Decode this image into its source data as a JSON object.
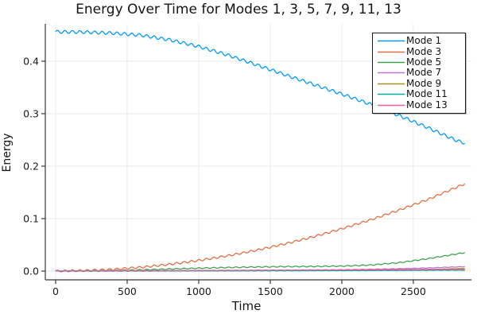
{
  "chart_data": {
    "type": "line",
    "title": "Energy Over Time for Modes 1, 3, 5, 7, 9, 11, 13",
    "xlabel": "Time",
    "ylabel": "Energy",
    "xlim": [
      -72,
      2906
    ],
    "ylim": [
      -0.0167,
      0.4712
    ],
    "xticks": [
      0,
      500,
      1000,
      1500,
      2000,
      2500
    ],
    "xtick_labels": [
      "0",
      "500",
      "1000",
      "1500",
      "2000",
      "2500"
    ],
    "yticks": [
      0.0,
      0.1,
      0.2,
      0.3,
      0.4
    ],
    "ytick_labels": [
      "0.0",
      "0.1",
      "0.2",
      "0.3",
      "0.4"
    ],
    "grid": true,
    "legend_position": "top-right",
    "grid_color": "#e9e9e9",
    "axis_color": "#383838",
    "tick_label_color": "#191919",
    "oscillation_period": 52,
    "series": [
      {
        "name": "Mode 1",
        "color": "#009AFA",
        "ripple_amp": 0.0028,
        "points": [
          [
            0,
            0.456
          ],
          [
            200,
            0.4555
          ],
          [
            400,
            0.4535
          ],
          [
            600,
            0.4495
          ],
          [
            800,
            0.4405
          ],
          [
            1000,
            0.428
          ],
          [
            1200,
            0.412
          ],
          [
            1400,
            0.3935
          ],
          [
            1600,
            0.3745
          ],
          [
            1800,
            0.356
          ],
          [
            2000,
            0.3375
          ],
          [
            2200,
            0.318
          ],
          [
            2400,
            0.2965
          ],
          [
            2600,
            0.2735
          ],
          [
            2800,
            0.249
          ],
          [
            2860,
            0.244
          ]
        ]
      },
      {
        "name": "Mode 3",
        "color": "#E36F47",
        "ripple_amp": 0.0018,
        "points": [
          [
            0,
            0.0
          ],
          [
            200,
            0.001
          ],
          [
            400,
            0.0032
          ],
          [
            600,
            0.0073
          ],
          [
            800,
            0.0129
          ],
          [
            1000,
            0.0202
          ],
          [
            1200,
            0.029
          ],
          [
            1400,
            0.0395
          ],
          [
            1600,
            0.0516
          ],
          [
            1800,
            0.0653
          ],
          [
            2000,
            0.0807
          ],
          [
            2200,
            0.0976
          ],
          [
            2400,
            0.1162
          ],
          [
            2600,
            0.1363
          ],
          [
            2800,
            0.1595
          ],
          [
            2860,
            0.1665
          ]
        ]
      },
      {
        "name": "Mode 5",
        "color": "#3DA44E",
        "ripple_amp": 0.0009,
        "points": [
          [
            0,
            0.0
          ],
          [
            200,
            0.0003
          ],
          [
            400,
            0.001
          ],
          [
            600,
            0.0022
          ],
          [
            800,
            0.004
          ],
          [
            1000,
            0.0055
          ],
          [
            1200,
            0.0068
          ],
          [
            1400,
            0.0078
          ],
          [
            1600,
            0.0085
          ],
          [
            1800,
            0.0088
          ],
          [
            2000,
            0.0095
          ],
          [
            2200,
            0.0115
          ],
          [
            2400,
            0.016
          ],
          [
            2600,
            0.0235
          ],
          [
            2800,
            0.0325
          ],
          [
            2860,
            0.0355
          ]
        ]
      },
      {
        "name": "Mode 7",
        "color": "#C371D2",
        "ripple_amp": 0.0004,
        "points": [
          [
            0,
            0.0
          ],
          [
            400,
            0.0002
          ],
          [
            800,
            0.0005
          ],
          [
            1200,
            0.001
          ],
          [
            1600,
            0.0016
          ],
          [
            2000,
            0.0025
          ],
          [
            2400,
            0.0045
          ],
          [
            2600,
            0.006
          ],
          [
            2860,
            0.0085
          ]
        ]
      },
      {
        "name": "Mode 9",
        "color": "#AC8E18",
        "ripple_amp": 0.0002,
        "points": [
          [
            0,
            0.0
          ],
          [
            800,
            0.0003
          ],
          [
            1600,
            0.0009
          ],
          [
            2000,
            0.0014
          ],
          [
            2400,
            0.0024
          ],
          [
            2600,
            0.0032
          ],
          [
            2860,
            0.005
          ]
        ]
      },
      {
        "name": "Mode 11",
        "color": "#00AAAE",
        "ripple_amp": 0.0002,
        "points": [
          [
            0,
            0.0
          ],
          [
            1000,
            0.0003
          ],
          [
            2000,
            0.0008
          ],
          [
            2860,
            0.0018
          ]
        ]
      },
      {
        "name": "Mode 13",
        "color": "#ED5E93",
        "ripple_amp": 0.0002,
        "points": [
          [
            0,
            0.0006
          ],
          [
            1000,
            0.0012
          ],
          [
            2000,
            0.0022
          ],
          [
            2860,
            0.0035
          ]
        ]
      }
    ]
  }
}
